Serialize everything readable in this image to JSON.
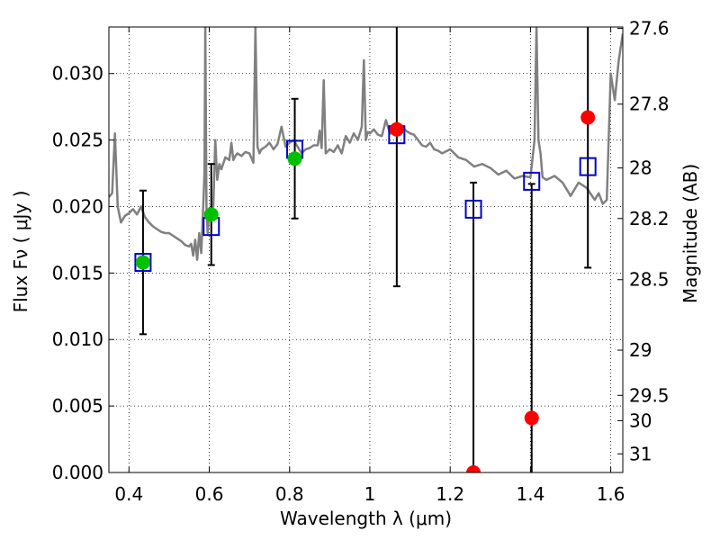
{
  "chart_data": {
    "type": "scatter",
    "title": "",
    "xlabel": "Wavelength  λ (μm)",
    "ylabel": "Flux  Fν  ( μJy )",
    "ylabel_right": "Magnitude (AB)",
    "xlim": [
      0.35,
      1.63
    ],
    "ylim": [
      0.0,
      0.0335
    ],
    "grid": true,
    "x_ticks": [
      {
        "value": 0.4,
        "label": "0.4"
      },
      {
        "value": 0.6,
        "label": "0.6"
      },
      {
        "value": 0.8,
        "label": "0.8"
      },
      {
        "value": 1.0,
        "label": "1"
      },
      {
        "value": 1.2,
        "label": "1.2"
      },
      {
        "value": 1.4,
        "label": "1.4"
      },
      {
        "value": 1.6,
        "label": "1.6"
      }
    ],
    "y_ticks": [
      {
        "value": 0.0,
        "label": "0.000"
      },
      {
        "value": 0.005,
        "label": "0.005"
      },
      {
        "value": 0.01,
        "label": "0.010"
      },
      {
        "value": 0.015,
        "label": "0.015"
      },
      {
        "value": 0.02,
        "label": "0.020"
      },
      {
        "value": 0.025,
        "label": "0.025"
      },
      {
        "value": 0.03,
        "label": "0.030"
      }
    ],
    "right_ticks": [
      {
        "flux": 0.0334,
        "label": "27.6"
      },
      {
        "flux": 0.0277,
        "label": "27.8"
      },
      {
        "flux": 0.0229,
        "label": "28"
      },
      {
        "flux": 0.0191,
        "label": "28.2"
      },
      {
        "flux": 0.0145,
        "label": "28.5"
      },
      {
        "flux": 0.0092,
        "label": "29"
      },
      {
        "flux": 0.0058,
        "label": "29.5"
      },
      {
        "flux": 0.0039,
        "label": "30"
      },
      {
        "flux": 0.0014,
        "label": "31"
      }
    ],
    "series": [
      {
        "name": "template-spectrum",
        "kind": "line",
        "color": "#808080",
        "x": [
          0.35,
          0.358,
          0.365,
          0.372,
          0.38,
          0.39,
          0.4,
          0.41,
          0.42,
          0.43,
          0.44,
          0.45,
          0.46,
          0.47,
          0.48,
          0.49,
          0.5,
          0.51,
          0.52,
          0.53,
          0.54,
          0.55,
          0.555,
          0.56,
          0.565,
          0.57,
          0.575,
          0.58,
          0.585,
          0.588,
          0.59,
          0.593,
          0.596,
          0.6,
          0.61,
          0.615,
          0.62,
          0.625,
          0.63,
          0.64,
          0.65,
          0.655,
          0.66,
          0.665,
          0.67,
          0.68,
          0.69,
          0.7,
          0.71,
          0.715,
          0.72,
          0.725,
          0.73,
          0.74,
          0.75,
          0.76,
          0.77,
          0.78,
          0.79,
          0.8,
          0.81,
          0.82,
          0.83,
          0.84,
          0.85,
          0.86,
          0.87,
          0.875,
          0.88,
          0.885,
          0.89,
          0.9,
          0.91,
          0.92,
          0.93,
          0.94,
          0.95,
          0.96,
          0.97,
          0.98,
          0.985,
          0.99,
          0.995,
          1.0,
          1.01,
          1.02,
          1.03,
          1.04,
          1.05,
          1.06,
          1.07,
          1.08,
          1.09,
          1.1,
          1.11,
          1.12,
          1.13,
          1.14,
          1.15,
          1.16,
          1.17,
          1.18,
          1.2,
          1.22,
          1.24,
          1.26,
          1.28,
          1.3,
          1.32,
          1.34,
          1.36,
          1.38,
          1.4,
          1.41,
          1.415,
          1.42,
          1.425,
          1.43,
          1.44,
          1.46,
          1.48,
          1.5,
          1.52,
          1.54,
          1.56,
          1.57,
          1.58,
          1.59,
          1.6,
          1.61,
          1.62,
          1.63
        ],
        "y": [
          0.0207,
          0.021,
          0.0255,
          0.02,
          0.0188,
          0.0193,
          0.0195,
          0.0198,
          0.0194,
          0.02,
          0.0192,
          0.0188,
          0.0185,
          0.0183,
          0.0181,
          0.018,
          0.018,
          0.0178,
          0.0176,
          0.0174,
          0.0171,
          0.017,
          0.0172,
          0.0163,
          0.0175,
          0.016,
          0.018,
          0.0165,
          0.02,
          0.0225,
          0.0335,
          0.02,
          0.018,
          0.0195,
          0.02,
          0.025,
          0.022,
          0.0232,
          0.0228,
          0.0237,
          0.0235,
          0.0248,
          0.0235,
          0.0238,
          0.024,
          0.0238,
          0.0241,
          0.024,
          0.0233,
          0.0335,
          0.0245,
          0.024,
          0.0243,
          0.0245,
          0.0248,
          0.0243,
          0.0247,
          0.026,
          0.0245,
          0.0248,
          0.025,
          0.0245,
          0.024,
          0.0243,
          0.0244,
          0.0246,
          0.0246,
          0.0257,
          0.0244,
          0.0295,
          0.024,
          0.0243,
          0.0241,
          0.0246,
          0.024,
          0.0253,
          0.0248,
          0.0255,
          0.025,
          0.026,
          0.031,
          0.025,
          0.0256,
          0.0255,
          0.0258,
          0.0254,
          0.0253,
          0.0265,
          0.0255,
          0.0255,
          0.0258,
          0.026,
          0.0257,
          0.0255,
          0.0254,
          0.025,
          0.0246,
          0.0245,
          0.0248,
          0.0243,
          0.0242,
          0.024,
          0.0243,
          0.0237,
          0.0235,
          0.023,
          0.0232,
          0.0229,
          0.0224,
          0.0227,
          0.0221,
          0.0223,
          0.0222,
          0.025,
          0.0335,
          0.025,
          0.024,
          0.0222,
          0.022,
          0.0223,
          0.0218,
          0.0208,
          0.0218,
          0.0214,
          0.0205,
          0.021,
          0.0202,
          0.0205,
          0.03,
          0.028,
          0.031,
          0.033
        ]
      },
      {
        "name": "model-fluxes",
        "kind": "open-square",
        "color": "#0000cc",
        "x": [
          0.435,
          0.605,
          0.813,
          1.067,
          1.258,
          1.403,
          1.543
        ],
        "y": [
          0.0158,
          0.0185,
          0.0243,
          0.0254,
          0.0198,
          0.0219,
          0.023
        ]
      },
      {
        "name": "detections",
        "kind": "marker",
        "color": "#00c000",
        "x": [
          0.435,
          0.605,
          0.813
        ],
        "y": [
          0.0158,
          0.0194,
          0.0236
        ],
        "err": [
          0.0054,
          0.0038,
          0.0045
        ]
      },
      {
        "name": "non-detections",
        "kind": "marker",
        "color": "#ff0000",
        "x": [
          1.067,
          1.258,
          1.403,
          1.543
        ],
        "y": [
          0.0258,
          0.0,
          0.0041,
          0.0267
        ],
        "err": [
          0.0118,
          0.0218,
          0.0176,
          0.0113
        ]
      }
    ]
  }
}
